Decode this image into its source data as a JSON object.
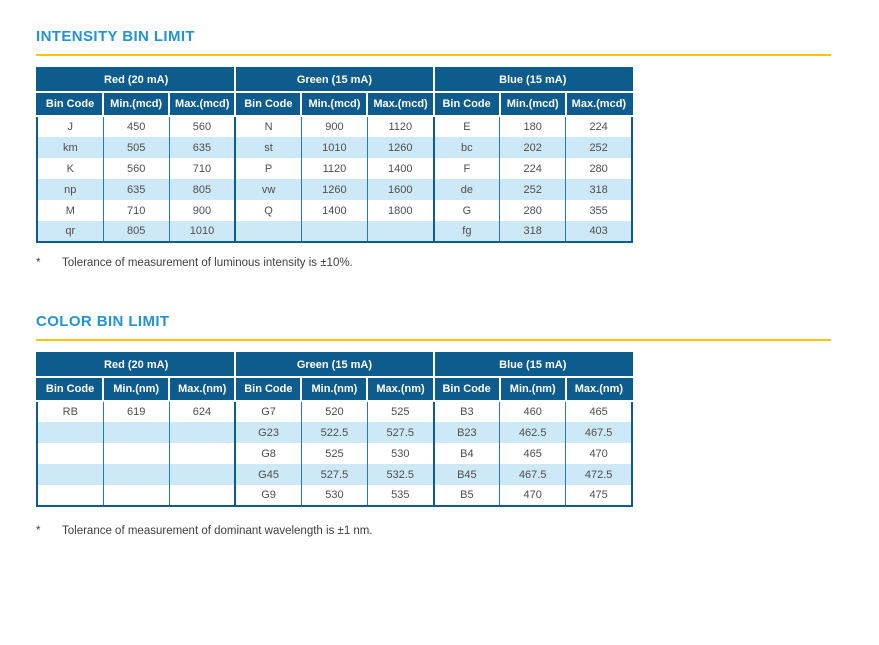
{
  "colors": {
    "title_blue": "#2394d2",
    "header_navy": "#0e5c8e",
    "row_alt_blue": "#cde9f7",
    "rule_gold": "#ffc20e",
    "cell_text": "#4e4e4e"
  },
  "sections": [
    {
      "title": "INTENSITY BIN LIMIT",
      "groups": [
        {
          "label": "Red (20 mA)",
          "columns": [
            "Bin Code",
            "Min.(mcd)",
            "Max.(mcd)"
          ]
        },
        {
          "label": "Green (15 mA)",
          "columns": [
            "Bin Code",
            "Min.(mcd)",
            "Max.(mcd)"
          ]
        },
        {
          "label": "Blue (15 mA)",
          "columns": [
            "Bin Code",
            "Min.(mcd)",
            "Max.(mcd)"
          ]
        }
      ],
      "rows": [
        [
          "J",
          "450",
          "560",
          "N",
          "900",
          "1120",
          "E",
          "180",
          "224"
        ],
        [
          "km",
          "505",
          "635",
          "st",
          "1010",
          "1260",
          "bc",
          "202",
          "252"
        ],
        [
          "K",
          "560",
          "710",
          "P",
          "1120",
          "1400",
          "F",
          "224",
          "280"
        ],
        [
          "np",
          "635",
          "805",
          "vw",
          "1260",
          "1600",
          "de",
          "252",
          "318"
        ],
        [
          "M",
          "710",
          "900",
          "Q",
          "1400",
          "1800",
          "G",
          "280",
          "355"
        ],
        [
          "qr",
          "805",
          "1010",
          "",
          "",
          "",
          "fg",
          "318",
          "403"
        ]
      ],
      "footnote_marker": "*",
      "footnote": "Tolerance of measurement of luminous intensity is ±10%."
    },
    {
      "title": "COLOR BIN LIMIT",
      "groups": [
        {
          "label": "Red (20 mA)",
          "columns": [
            "Bin Code",
            "Min.(nm)",
            "Max.(nm)"
          ]
        },
        {
          "label": "Green (15 mA)",
          "columns": [
            "Bin Code",
            "Min.(nm)",
            "Max.(nm)"
          ]
        },
        {
          "label": "Blue (15 mA)",
          "columns": [
            "Bin Code",
            "Min.(nm)",
            "Max.(nm)"
          ]
        }
      ],
      "rows": [
        [
          "RB",
          "619",
          "624",
          "G7",
          "520",
          "525",
          "B3",
          "460",
          "465"
        ],
        [
          "",
          "",
          "",
          "G23",
          "522.5",
          "527.5",
          "B23",
          "462.5",
          "467.5"
        ],
        [
          "",
          "",
          "",
          "G8",
          "525",
          "530",
          "B4",
          "465",
          "470"
        ],
        [
          "",
          "",
          "",
          "G45",
          "527.5",
          "532.5",
          "B45",
          "467.5",
          "472.5"
        ],
        [
          "",
          "",
          "",
          "G9",
          "530",
          "535",
          "B5",
          "470",
          "475"
        ]
      ],
      "footnote_marker": "*",
      "footnote": "Tolerance of measurement of dominant wavelength is ±1 nm."
    }
  ]
}
